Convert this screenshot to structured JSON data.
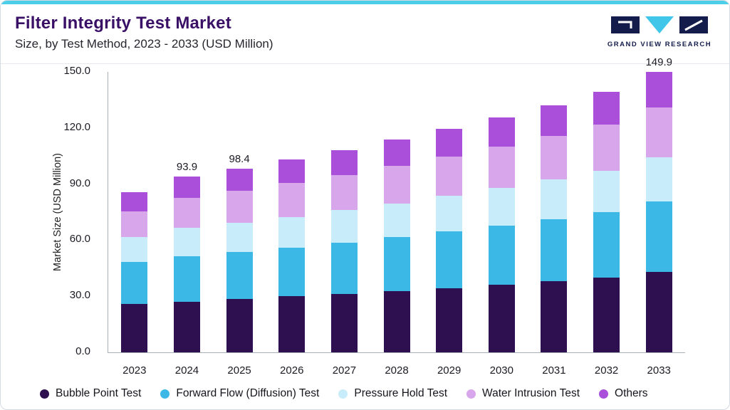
{
  "header": {
    "title": "Filter Integrity Test Market",
    "subtitle": "Size, by Test Method, 2023 - 2033 (USD Million)"
  },
  "logo": {
    "text": "GRAND VIEW RESEARCH"
  },
  "colors": {
    "accent_strip": "#4BCFE9",
    "title": "#3A0F66",
    "logo_navy": "#141C4B",
    "logo_cyan": "#3FC6E8",
    "axis_line": "#A7AEB6"
  },
  "chart_data": {
    "type": "bar",
    "stacked": true,
    "title": "Filter Integrity Test Market Size, by Test Method, 2023 - 2033 (USD Million)",
    "xlabel": "",
    "ylabel": "Market Size (USD Million)",
    "ylim": [
      0,
      150
    ],
    "yticks": [
      0,
      30,
      60,
      90,
      120,
      150
    ],
    "ytick_labels": [
      "0.0",
      "30.0",
      "60.0",
      "90.0",
      "120.0",
      "150.0"
    ],
    "grid": false,
    "legend_position": "bottom",
    "categories": [
      "2023",
      "2024",
      "2025",
      "2026",
      "2027",
      "2028",
      "2029",
      "2030",
      "2031",
      "2032",
      "2033"
    ],
    "series": [
      {
        "name": "Bubble Point Test",
        "color": "#2E1050",
        "values": [
          25.8,
          27.2,
          28.6,
          29.9,
          31.3,
          32.8,
          34.4,
          36.2,
          38.0,
          40.0,
          43.0
        ]
      },
      {
        "name": "Forward Flow (Diffusion) Test",
        "color": "#3BB8E6",
        "values": [
          22.5,
          24.1,
          25.0,
          26.2,
          27.5,
          28.8,
          30.2,
          31.7,
          33.3,
          35.0,
          37.6
        ]
      },
      {
        "name": "Pressure Hold Test",
        "color": "#C9ECFA",
        "values": [
          13.5,
          15.2,
          15.6,
          16.4,
          17.2,
          18.1,
          19.0,
          20.0,
          21.1,
          22.2,
          23.9
        ]
      },
      {
        "name": "Water Intrusion Test",
        "color": "#D8A6EA",
        "values": [
          13.5,
          16.1,
          17.2,
          18.1,
          19.0,
          20.0,
          21.1,
          22.2,
          23.4,
          24.7,
          26.6
        ]
      },
      {
        "name": "Others",
        "color": "#A94FD9",
        "values": [
          10.2,
          11.3,
          12.0,
          12.6,
          13.3,
          14.0,
          14.8,
          15.6,
          16.5,
          17.5,
          18.8
        ]
      }
    ],
    "totals": [
      85.5,
      93.9,
      98.4,
      103.2,
      108.3,
      113.7,
      119.5,
      125.7,
      132.3,
      139.4,
      149.9
    ],
    "bar_total_labels": [
      "",
      "93.9",
      "98.4",
      "",
      "",
      "",
      "",
      "",
      "",
      "",
      "149.9"
    ]
  }
}
